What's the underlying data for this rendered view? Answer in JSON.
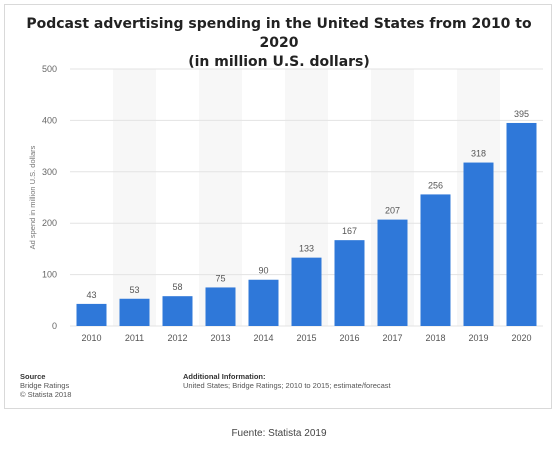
{
  "title_line1": "Podcast advertising spending in the United States from 2010 to 2020",
  "title_line2": "(in million U.S. dollars)",
  "source": {
    "heading": "Source",
    "line1": "Bridge Ratings",
    "line2": "© Statista 2018"
  },
  "additional_info": {
    "heading": "Additional Information:",
    "text": "United States; Bridge Ratings; 2010 to 2015; estimate/forecast"
  },
  "caption": "Fuente: Statista 2019",
  "chart_data": {
    "type": "bar",
    "categories": [
      "2010",
      "2011",
      "2012",
      "2013",
      "2014",
      "2015",
      "2016",
      "2017",
      "2018",
      "2019",
      "2020"
    ],
    "values": [
      43,
      53,
      58,
      75,
      90,
      133,
      167,
      207,
      256,
      318,
      395
    ],
    "ylabel": "Ad spend in million U.S. dollars",
    "xlabel": "",
    "ylim": [
      0,
      500
    ],
    "yticks": [
      0,
      100,
      200,
      300,
      400,
      500
    ],
    "grid": true,
    "bar_color": "#2f78d9",
    "label_color": "#555555"
  }
}
